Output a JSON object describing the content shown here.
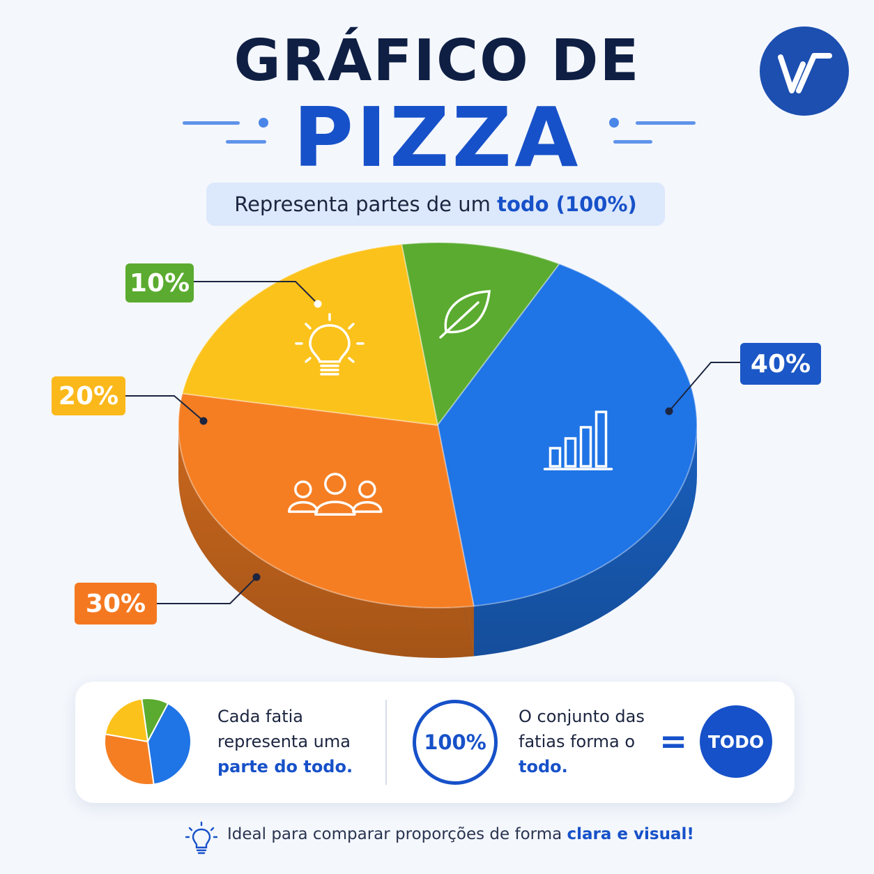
{
  "title": {
    "line1": "GRÁFICO DE",
    "line2": "PIZZA"
  },
  "subtitle": {
    "prefix": "Representa partes de um ",
    "highlight": "todo (100%)"
  },
  "logo": {
    "icon": "w-logo-icon"
  },
  "chart_data": {
    "type": "pie",
    "categories": [
      "10%",
      "20%",
      "30%",
      "40%"
    ],
    "values": [
      10,
      20,
      30,
      40
    ],
    "unit": "%",
    "colors": [
      "#5aab2f",
      "#fbc21b",
      "#f57e23",
      "#1f74e6"
    ],
    "icons": [
      "leaf-icon",
      "lightbulb-icon",
      "people-icon",
      "bar-chart-icon"
    ],
    "labels": [
      "10%",
      "20%",
      "30%",
      "40%"
    ]
  },
  "card": {
    "left_line1": "Cada fatia",
    "left_line2": "representa uma",
    "left_highlight": "parte do todo.",
    "ring_label": "100%",
    "right_line1": "O conjunto das",
    "right_line2": "fatias forma o",
    "right_highlight": "todo.",
    "equals": "=",
    "todo_label": "TODO"
  },
  "footer": {
    "prefix": "Ideal para comparar proporções de forma ",
    "highlight": "clara e visual!"
  }
}
